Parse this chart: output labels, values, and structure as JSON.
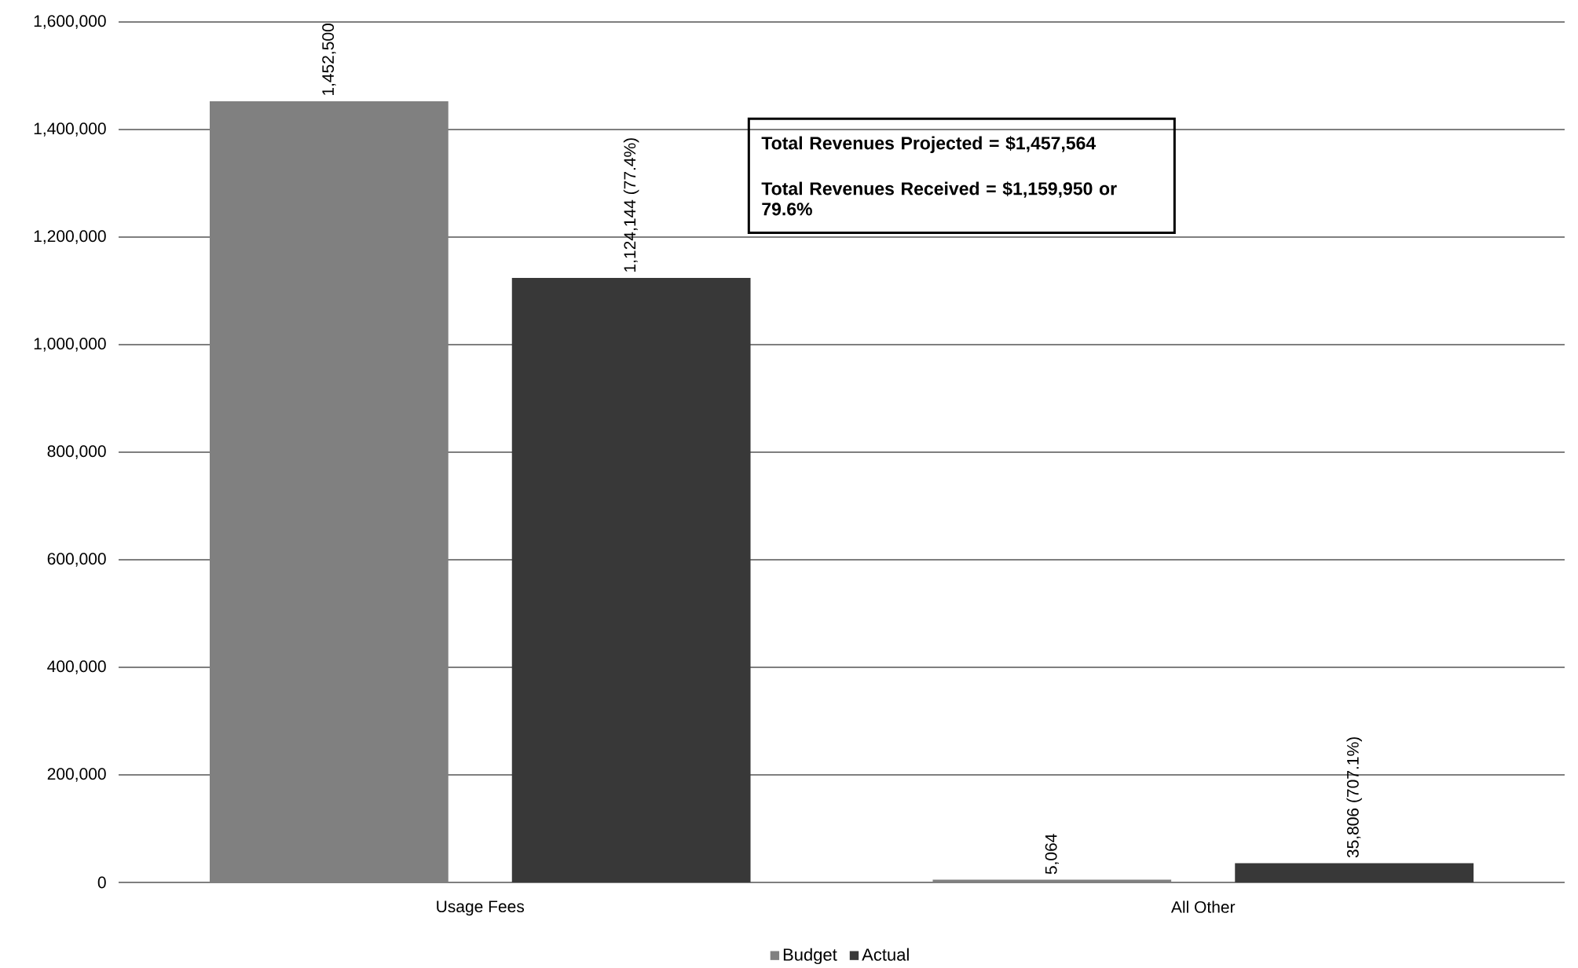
{
  "chart_data": {
    "type": "bar",
    "categories": [
      "Usage Fees",
      "All Other"
    ],
    "series": [
      {
        "name": "Budget",
        "color": "#808080",
        "values": [
          1452500,
          5064
        ],
        "value_labels": [
          "1,452,500",
          "5,064"
        ]
      },
      {
        "name": "Actual",
        "color": "#383838",
        "values": [
          1124144,
          35806
        ],
        "value_labels": [
          "1,124,144 (77.4%)",
          "35,806 (707.1%)"
        ]
      }
    ],
    "ylim": [
      0,
      1600000
    ],
    "yticks": [
      {
        "value": 0,
        "label": "0"
      },
      {
        "value": 200000,
        "label": "200,000"
      },
      {
        "value": 400000,
        "label": "400,000"
      },
      {
        "value": 600000,
        "label": "600,000"
      },
      {
        "value": 800000,
        "label": "800,000"
      },
      {
        "value": 1000000,
        "label": "1,000,000"
      },
      {
        "value": 1200000,
        "label": "1,200,000"
      },
      {
        "value": 1400000,
        "label": "1,400,000"
      },
      {
        "value": 1600000,
        "label": "1,600,000"
      }
    ],
    "grid": "y",
    "legend": "bottom",
    "annotations": [
      "Total Revenues Projected = $1,457,564",
      "Total Revenues Received = $1,159,950 or 79.6%"
    ]
  }
}
